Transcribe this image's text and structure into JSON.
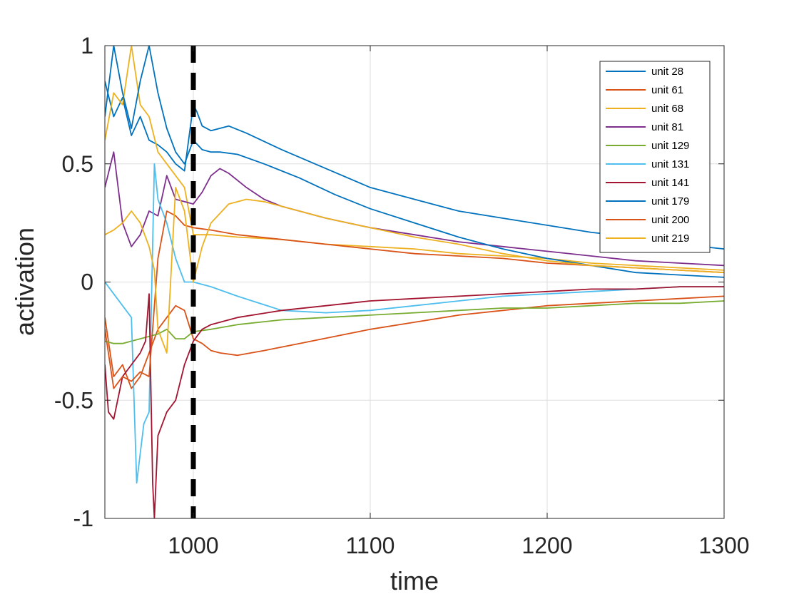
{
  "chart_data": {
    "type": "line",
    "title": "",
    "xlabel": "time",
    "ylabel": "activation",
    "xlim": [
      950,
      1300
    ],
    "ylim": [
      -1,
      1
    ],
    "xticks": [
      1000,
      1100,
      1200,
      1300
    ],
    "xtick_labels": [
      "1000",
      "1100",
      "1200",
      "1300"
    ],
    "yticks": [
      -1,
      -0.5,
      0,
      0.5,
      1
    ],
    "ytick_labels": [
      "-1",
      "-0.5",
      "0",
      "0.5",
      "1"
    ],
    "grid": true,
    "legend_position": "top-right",
    "vline": {
      "x": 1000,
      "style": "dashed",
      "color": "#000000"
    },
    "series": [
      {
        "name": "unit 28",
        "color": "#0072BD",
        "points": [
          [
            950,
            0.85
          ],
          [
            955,
            0.7
          ],
          [
            960,
            0.78
          ],
          [
            965,
            0.62
          ],
          [
            970,
            0.7
          ],
          [
            975,
            0.6
          ],
          [
            980,
            0.58
          ],
          [
            985,
            0.55
          ],
          [
            990,
            0.5
          ],
          [
            995,
            0.47
          ],
          [
            1000,
            0.75
          ],
          [
            1002,
            0.72
          ],
          [
            1005,
            0.66
          ],
          [
            1010,
            0.64
          ],
          [
            1015,
            0.65
          ],
          [
            1020,
            0.66
          ],
          [
            1030,
            0.63
          ],
          [
            1050,
            0.56
          ],
          [
            1075,
            0.48
          ],
          [
            1100,
            0.4
          ],
          [
            1125,
            0.35
          ],
          [
            1150,
            0.3
          ],
          [
            1175,
            0.27
          ],
          [
            1200,
            0.24
          ],
          [
            1225,
            0.21
          ],
          [
            1250,
            0.19
          ],
          [
            1275,
            0.16
          ],
          [
            1300,
            0.14
          ]
        ]
      },
      {
        "name": "unit 61",
        "color": "#D95319",
        "points": [
          [
            950,
            -0.15
          ],
          [
            955,
            -0.4
          ],
          [
            960,
            -0.35
          ],
          [
            965,
            -0.45
          ],
          [
            970,
            -0.4
          ],
          [
            975,
            -0.3
          ],
          [
            980,
            -0.2
          ],
          [
            985,
            -0.15
          ],
          [
            990,
            -0.1
          ],
          [
            995,
            -0.12
          ],
          [
            1000,
            -0.24
          ],
          [
            1005,
            -0.26
          ],
          [
            1010,
            -0.29
          ],
          [
            1015,
            -0.3
          ],
          [
            1025,
            -0.31
          ],
          [
            1040,
            -0.29
          ],
          [
            1060,
            -0.26
          ],
          [
            1080,
            -0.23
          ],
          [
            1100,
            -0.2
          ],
          [
            1125,
            -0.17
          ],
          [
            1150,
            -0.14
          ],
          [
            1175,
            -0.12
          ],
          [
            1200,
            -0.1
          ],
          [
            1225,
            -0.09
          ],
          [
            1250,
            -0.08
          ],
          [
            1275,
            -0.07
          ],
          [
            1300,
            -0.06
          ]
        ]
      },
      {
        "name": "unit 68",
        "color": "#EDB120",
        "points": [
          [
            950,
            0.6
          ],
          [
            955,
            0.8
          ],
          [
            960,
            0.75
          ],
          [
            965,
            1.0
          ],
          [
            970,
            0.75
          ],
          [
            975,
            0.7
          ],
          [
            980,
            0.55
          ],
          [
            985,
            0.5
          ],
          [
            990,
            0.45
          ],
          [
            995,
            0.4
          ],
          [
            1000,
            0.2
          ],
          [
            1010,
            0.2
          ],
          [
            1025,
            0.19
          ],
          [
            1050,
            0.18
          ],
          [
            1075,
            0.16
          ],
          [
            1100,
            0.15
          ],
          [
            1125,
            0.14
          ],
          [
            1150,
            0.12
          ],
          [
            1175,
            0.11
          ],
          [
            1200,
            0.1
          ],
          [
            1225,
            0.08
          ],
          [
            1250,
            0.07
          ],
          [
            1275,
            0.06
          ],
          [
            1300,
            0.05
          ]
        ]
      },
      {
        "name": "unit 81",
        "color": "#7E2F8E",
        "points": [
          [
            950,
            0.4
          ],
          [
            955,
            0.55
          ],
          [
            960,
            0.25
          ],
          [
            965,
            0.15
          ],
          [
            970,
            0.2
          ],
          [
            975,
            0.3
          ],
          [
            980,
            0.28
          ],
          [
            985,
            0.45
          ],
          [
            990,
            0.35
          ],
          [
            995,
            0.34
          ],
          [
            1000,
            0.33
          ],
          [
            1005,
            0.38
          ],
          [
            1010,
            0.45
          ],
          [
            1015,
            0.48
          ],
          [
            1020,
            0.46
          ],
          [
            1030,
            0.4
          ],
          [
            1040,
            0.35
          ],
          [
            1050,
            0.32
          ],
          [
            1075,
            0.27
          ],
          [
            1100,
            0.23
          ],
          [
            1125,
            0.2
          ],
          [
            1150,
            0.17
          ],
          [
            1175,
            0.15
          ],
          [
            1200,
            0.13
          ],
          [
            1225,
            0.11
          ],
          [
            1250,
            0.09
          ],
          [
            1275,
            0.08
          ],
          [
            1300,
            0.07
          ]
        ]
      },
      {
        "name": "unit 129",
        "color": "#77AC30",
        "points": [
          [
            950,
            -0.25
          ],
          [
            955,
            -0.26
          ],
          [
            960,
            -0.26
          ],
          [
            965,
            -0.25
          ],
          [
            970,
            -0.24
          ],
          [
            975,
            -0.23
          ],
          [
            980,
            -0.22
          ],
          [
            985,
            -0.2
          ],
          [
            990,
            -0.24
          ],
          [
            995,
            -0.24
          ],
          [
            1000,
            -0.21
          ],
          [
            1010,
            -0.2
          ],
          [
            1025,
            -0.18
          ],
          [
            1050,
            -0.16
          ],
          [
            1075,
            -0.15
          ],
          [
            1100,
            -0.14
          ],
          [
            1125,
            -0.13
          ],
          [
            1150,
            -0.12
          ],
          [
            1175,
            -0.11
          ],
          [
            1200,
            -0.11
          ],
          [
            1225,
            -0.1
          ],
          [
            1250,
            -0.09
          ],
          [
            1275,
            -0.09
          ],
          [
            1300,
            -0.08
          ]
        ]
      },
      {
        "name": "unit 131",
        "color": "#4DBEEE",
        "points": [
          [
            950,
            0.0
          ],
          [
            955,
            -0.05
          ],
          [
            960,
            -0.1
          ],
          [
            965,
            -0.15
          ],
          [
            968,
            -0.85
          ],
          [
            972,
            -0.6
          ],
          [
            975,
            -0.55
          ],
          [
            978,
            0.5
          ],
          [
            980,
            0.35
          ],
          [
            985,
            0.25
          ],
          [
            990,
            0.1
          ],
          [
            995,
            0.0
          ],
          [
            1000,
            0.0
          ],
          [
            1010,
            -0.02
          ],
          [
            1025,
            -0.06
          ],
          [
            1050,
            -0.12
          ],
          [
            1075,
            -0.13
          ],
          [
            1100,
            -0.12
          ],
          [
            1125,
            -0.1
          ],
          [
            1150,
            -0.08
          ],
          [
            1175,
            -0.06
          ],
          [
            1200,
            -0.05
          ],
          [
            1225,
            -0.04
          ],
          [
            1250,
            -0.03
          ],
          [
            1275,
            -0.02
          ],
          [
            1300,
            -0.02
          ]
        ]
      },
      {
        "name": "unit 141",
        "color": "#A2142F",
        "points": [
          [
            950,
            -0.35
          ],
          [
            952,
            -0.55
          ],
          [
            955,
            -0.58
          ],
          [
            960,
            -0.4
          ],
          [
            965,
            -0.35
          ],
          [
            970,
            -0.3
          ],
          [
            973,
            -0.25
          ],
          [
            975,
            -0.05
          ],
          [
            977,
            -0.85
          ],
          [
            978,
            -1.0
          ],
          [
            980,
            -0.65
          ],
          [
            985,
            -0.55
          ],
          [
            990,
            -0.5
          ],
          [
            995,
            -0.35
          ],
          [
            1000,
            -0.25
          ],
          [
            1005,
            -0.2
          ],
          [
            1010,
            -0.18
          ],
          [
            1025,
            -0.15
          ],
          [
            1050,
            -0.12
          ],
          [
            1075,
            -0.1
          ],
          [
            1100,
            -0.08
          ],
          [
            1125,
            -0.07
          ],
          [
            1150,
            -0.06
          ],
          [
            1175,
            -0.05
          ],
          [
            1200,
            -0.04
          ],
          [
            1225,
            -0.03
          ],
          [
            1250,
            -0.03
          ],
          [
            1275,
            -0.02
          ],
          [
            1300,
            -0.02
          ]
        ]
      },
      {
        "name": "unit 179",
        "color": "#0072BD",
        "points": [
          [
            950,
            0.7
          ],
          [
            955,
            1.0
          ],
          [
            960,
            0.8
          ],
          [
            965,
            0.65
          ],
          [
            970,
            0.85
          ],
          [
            975,
            1.0
          ],
          [
            980,
            0.8
          ],
          [
            985,
            0.65
          ],
          [
            990,
            0.55
          ],
          [
            995,
            0.5
          ],
          [
            1000,
            0.6
          ],
          [
            1005,
            0.56
          ],
          [
            1010,
            0.55
          ],
          [
            1015,
            0.55
          ],
          [
            1025,
            0.54
          ],
          [
            1040,
            0.5
          ],
          [
            1060,
            0.44
          ],
          [
            1080,
            0.37
          ],
          [
            1100,
            0.31
          ],
          [
            1125,
            0.25
          ],
          [
            1150,
            0.19
          ],
          [
            1175,
            0.14
          ],
          [
            1200,
            0.1
          ],
          [
            1225,
            0.07
          ],
          [
            1250,
            0.04
          ],
          [
            1275,
            0.03
          ],
          [
            1300,
            0.02
          ]
        ]
      },
      {
        "name": "unit 200",
        "color": "#D95319",
        "points": [
          [
            950,
            -0.2
          ],
          [
            955,
            -0.45
          ],
          [
            960,
            -0.4
          ],
          [
            965,
            -0.42
          ],
          [
            970,
            -0.38
          ],
          [
            975,
            -0.4
          ],
          [
            980,
            0.1
          ],
          [
            985,
            0.3
          ],
          [
            990,
            0.28
          ],
          [
            995,
            0.24
          ],
          [
            1000,
            0.23
          ],
          [
            1010,
            0.22
          ],
          [
            1025,
            0.2
          ],
          [
            1050,
            0.18
          ],
          [
            1075,
            0.16
          ],
          [
            1100,
            0.14
          ],
          [
            1125,
            0.12
          ],
          [
            1150,
            0.11
          ],
          [
            1175,
            0.1
          ],
          [
            1200,
            0.08
          ],
          [
            1225,
            0.07
          ],
          [
            1250,
            0.06
          ],
          [
            1275,
            0.05
          ],
          [
            1300,
            0.04
          ]
        ]
      },
      {
        "name": "unit 219",
        "color": "#EDB120",
        "points": [
          [
            950,
            0.2
          ],
          [
            955,
            0.22
          ],
          [
            960,
            0.25
          ],
          [
            965,
            0.3
          ],
          [
            970,
            0.25
          ],
          [
            975,
            0.15
          ],
          [
            978,
            0.05
          ],
          [
            980,
            -0.2
          ],
          [
            985,
            -0.3
          ],
          [
            990,
            0.4
          ],
          [
            995,
            0.3
          ],
          [
            1000,
            0.0
          ],
          [
            1005,
            0.15
          ],
          [
            1010,
            0.25
          ],
          [
            1020,
            0.33
          ],
          [
            1030,
            0.35
          ],
          [
            1040,
            0.34
          ],
          [
            1050,
            0.32
          ],
          [
            1075,
            0.27
          ],
          [
            1100,
            0.23
          ],
          [
            1125,
            0.19
          ],
          [
            1150,
            0.16
          ],
          [
            1175,
            0.12
          ],
          [
            1200,
            0.09
          ],
          [
            1225,
            0.07
          ],
          [
            1250,
            0.06
          ],
          [
            1275,
            0.05
          ],
          [
            1300,
            0.04
          ]
        ]
      }
    ]
  }
}
